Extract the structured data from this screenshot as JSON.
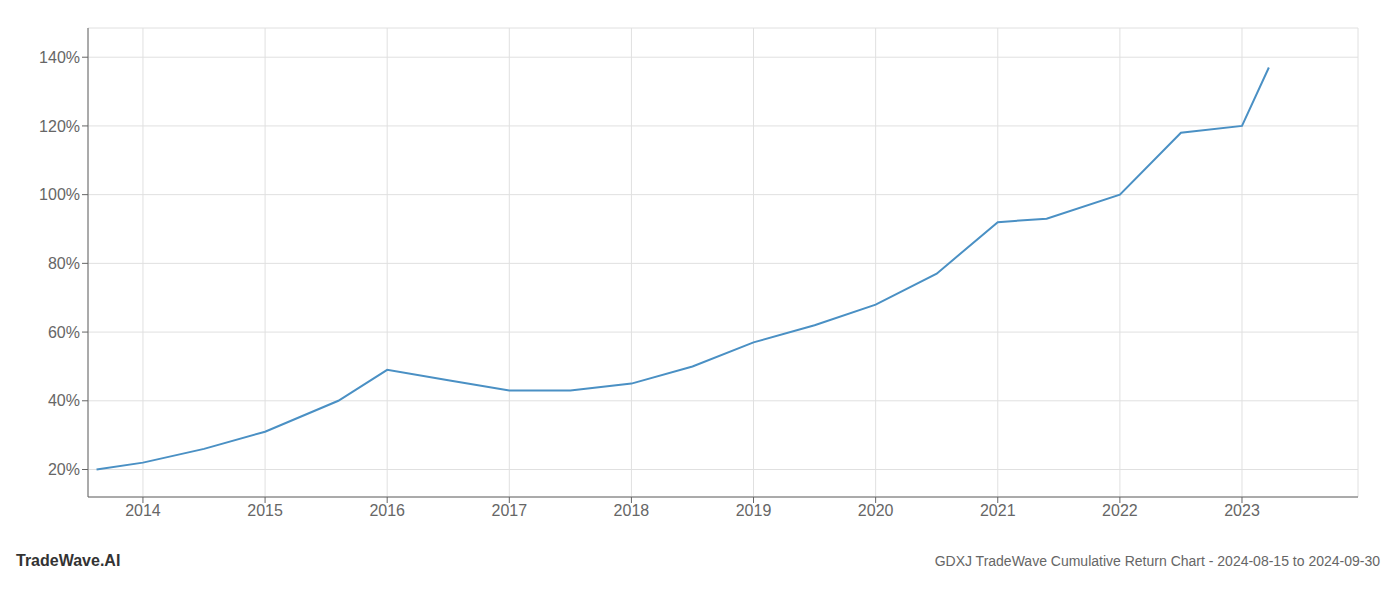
{
  "chart_data": {
    "type": "line",
    "title": "GDXJ TradeWave Cumulative Return Chart - 2024-08-15 to 2024-09-30",
    "annotations": [
      "TradeWave.AI"
    ],
    "x": [
      2013.62,
      2014.0,
      2014.5,
      2015.0,
      2015.6,
      2016.0,
      2016.5,
      2017.0,
      2017.5,
      2018.0,
      2018.5,
      2019.0,
      2019.5,
      2020.0,
      2020.5,
      2021.0,
      2021.4,
      2022.0,
      2022.5,
      2023.0,
      2023.22
    ],
    "values": [
      0.2,
      0.22,
      0.26,
      0.31,
      0.4,
      0.49,
      0.46,
      0.43,
      0.43,
      0.45,
      0.5,
      0.57,
      0.62,
      0.68,
      0.77,
      0.92,
      0.93,
      1.0,
      1.18,
      1.2,
      1.37
    ],
    "color": "#4a90c4",
    "xlim": [
      2013.55,
      2023.95
    ],
    "xticks": [
      2014,
      2015,
      2016,
      2017,
      2018,
      2019,
      2020,
      2021,
      2022,
      2023
    ],
    "ylim": [
      0.12,
      1.485
    ],
    "yticks": [
      {
        "value": 0.2,
        "label": "20%"
      },
      {
        "value": 0.4,
        "label": "40%"
      },
      {
        "value": 0.6,
        "label": "60%"
      },
      {
        "value": 0.8,
        "label": "80%"
      },
      {
        "value": 1.0,
        "label": "100%"
      },
      {
        "value": 1.2,
        "label": "120%"
      },
      {
        "value": 1.4,
        "label": "140%"
      }
    ],
    "grid": true
  }
}
